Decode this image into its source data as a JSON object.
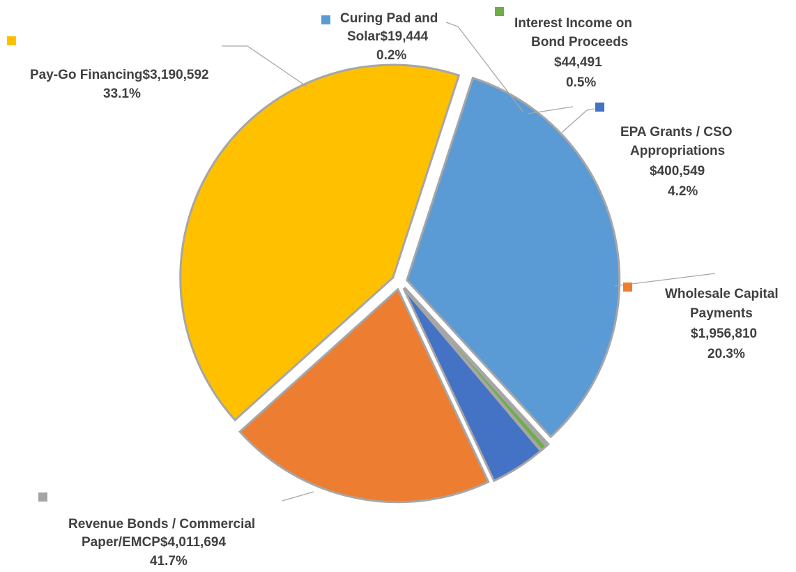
{
  "chart_data": {
    "type": "pie",
    "categories": [
      "Revenue Bonds / Commercial Paper/EMCP",
      "Pay-Go Financing",
      "Curing Pad and Solar",
      "Interest Income on Bond Proceeds",
      "EPA Grants / CSO Appropriations",
      "Wholesale Capital Payments"
    ],
    "values": [
      4011694,
      3190592,
      19444,
      44491,
      400549,
      1956810
    ],
    "value_labels": [
      "$4,011,694",
      "$3,190,592",
      "$19,444",
      "$44,491",
      "$400,549",
      "$1,956,810"
    ],
    "percent_labels": [
      "41.7%",
      "33.1%",
      "0.2%",
      "0.5%",
      "4.2%",
      "20.3%"
    ],
    "colors": [
      "#ffc000",
      "#5b9bd5",
      "#a5a5a5",
      "#70ad47",
      "#4472c4",
      "#ed7d31"
    ],
    "legend": "inline-with-labels",
    "exploded": true
  },
  "labels": {
    "revenue_bonds": {
      "line1": "Revenue Bonds / Commercial",
      "line2": "Paper/EMCP$4,011,694",
      "line3": "41.7%"
    },
    "pay_go": {
      "line1": "Pay-Go Financing$3,190,592",
      "line2": "33.1%"
    },
    "curing_pad": {
      "line1": "Curing Pad and",
      "line2": "Solar$19,444",
      "line3": "0.2%"
    },
    "interest_income": {
      "line1": "Interest Income on",
      "line2": "Bond Proceeds",
      "line3": "$44,491",
      "line4": "0.5%"
    },
    "epa_grants": {
      "line1": "EPA Grants / CSO",
      "line2": "Appropriations",
      "line3": "$400,549",
      "line4": "4.2%"
    },
    "wholesale": {
      "line1": "Wholesale Capital",
      "line2": "Payments",
      "line3": "$1,956,810",
      "line4": "20.3%"
    }
  }
}
